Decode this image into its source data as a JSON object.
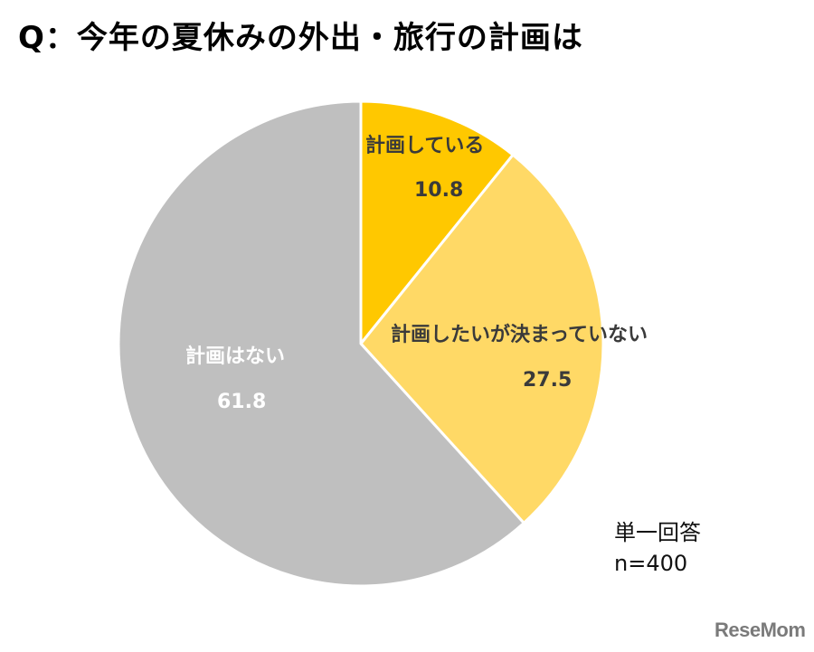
{
  "title": "Q：今年の夏休みの外出・旅行の計画は",
  "note": {
    "type": "単一回答",
    "n": "n=400"
  },
  "logo": "ReseMom",
  "colors": {
    "planned": "#FFC800",
    "undecided": "#FFD966",
    "none": "#BFBFBF",
    "separator": "#FFFFFF"
  },
  "slices": [
    {
      "label": "計画している",
      "value": "10.8"
    },
    {
      "label": "計画したいが決まっていない",
      "value": "27.5"
    },
    {
      "label": "計画はない",
      "value": "61.8"
    }
  ],
  "chart_data": {
    "type": "pie",
    "title": "Q：今年の夏休みの外出・旅行の計画は",
    "categories": [
      "計画している",
      "計画したいが決まっていない",
      "計画はない"
    ],
    "values": [
      10.8,
      27.5,
      61.8
    ],
    "unit": "%",
    "start_angle": "12 o'clock, clockwise",
    "colors": [
      "#FFC800",
      "#FFD966",
      "#BFBFBF"
    ],
    "annotations": [
      "単一回答",
      "n=400"
    ],
    "legend": "none (direct labels)"
  }
}
